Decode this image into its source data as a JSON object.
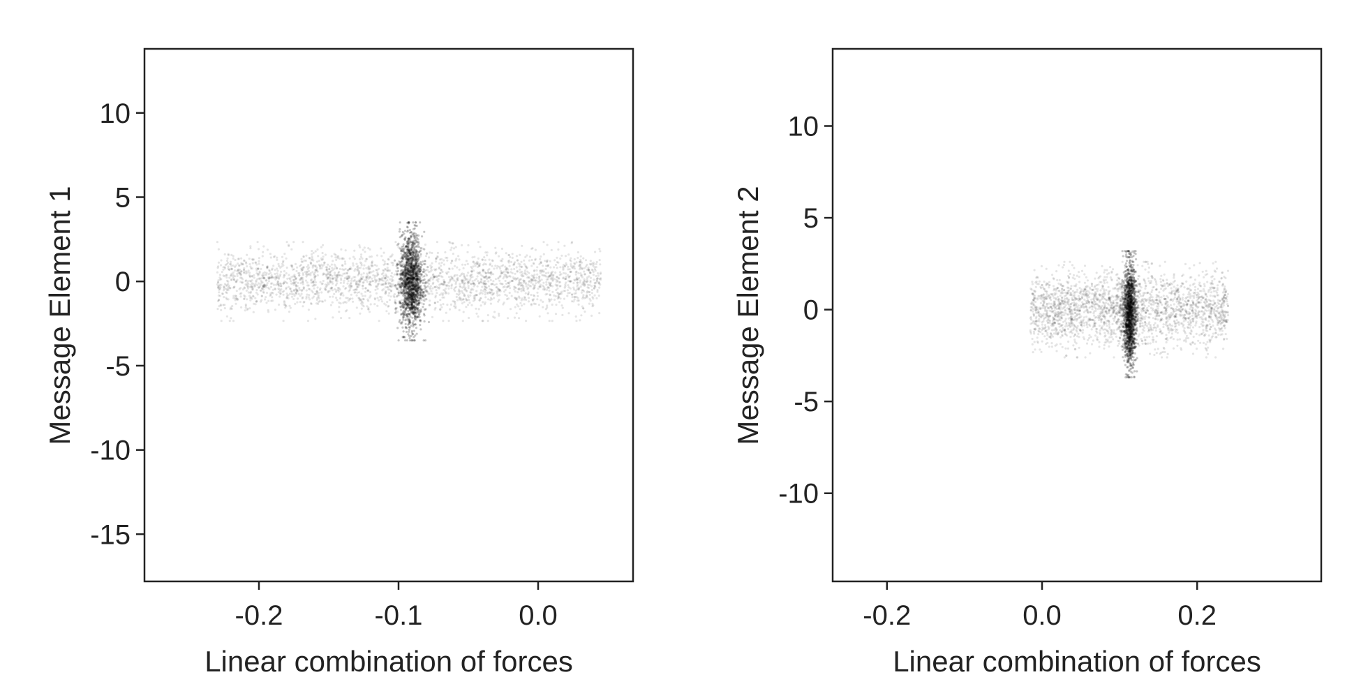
{
  "chart_data": [
    {
      "type": "scatter",
      "title": "",
      "xlabel": "Linear combination of forces",
      "ylabel": "Message Element 1",
      "xlim": [
        -0.282,
        0.068
      ],
      "ylim": [
        -17.8,
        13.8
      ],
      "xticks": [
        -0.2,
        -0.1,
        0.0
      ],
      "xtick_labels": [
        "-0.2",
        "-0.1",
        "0.0"
      ],
      "yticks": [
        10,
        5,
        0,
        -5,
        -10,
        -15
      ],
      "ytick_labels": [
        "10",
        "5",
        "0",
        "-5",
        "-10",
        "-15"
      ],
      "grid": false,
      "legend": "none",
      "color": "#000000",
      "series": [
        {
          "description_points": "diffuse band",
          "x_range": [
            -0.23,
            0.045
          ],
          "y_mean": 0.0,
          "y_spread": 0.9,
          "count": 2600,
          "opacity": 0.1
        },
        {
          "x_center": -0.091,
          "x_spread": 0.004,
          "y_range": [
            -2.8,
            2.8
          ],
          "count": 1400,
          "opacity": 0.22
        }
      ]
    },
    {
      "type": "scatter",
      "title": "",
      "xlabel": "Linear combination of forces",
      "ylabel": "Message Element 2",
      "xlim": [
        -0.27,
        0.36
      ],
      "ylim": [
        -14.8,
        14.2
      ],
      "xticks": [
        -0.2,
        0.0,
        0.2
      ],
      "xtick_labels": [
        "-0.2",
        "0.0",
        "0.2"
      ],
      "yticks": [
        10,
        5,
        0,
        -5,
        -10
      ],
      "ytick_labels": [
        "10",
        "5",
        "0",
        "-5",
        "-10"
      ],
      "grid": false,
      "legend": "none",
      "color": "#000000",
      "series": [
        {
          "x_range": [
            -0.015,
            0.24
          ],
          "y_mean": 0.0,
          "y_spread": 1.0,
          "count": 2400,
          "opacity": 0.1
        },
        {
          "x_center": 0.113,
          "x_spread": 0.004,
          "y_range": [
            -3.0,
            2.5
          ],
          "count": 1400,
          "opacity": 0.22
        }
      ]
    }
  ]
}
